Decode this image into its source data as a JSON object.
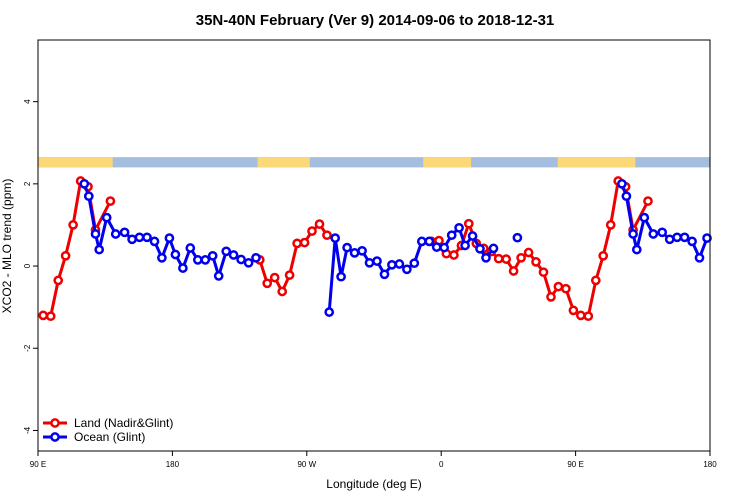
{
  "chart_data": {
    "type": "line",
    "title": "35N-40N February (Ver 9)   2014-09-06 to 2018-12-31",
    "xlabel": "Longitude (deg E)",
    "ylabel": "XCO2 - MLO trend (ppm)",
    "xlim": [
      90,
      540
    ],
    "ylim": [
      -4.5,
      5.5
    ],
    "x_ticks": [
      {
        "value": 90,
        "label": "90 E"
      },
      {
        "value": 180,
        "label": "180"
      },
      {
        "value": 270,
        "label": "90 W"
      },
      {
        "value": 360,
        "label": "0"
      },
      {
        "value": 450,
        "label": "90 E"
      },
      {
        "value": 540,
        "label": "180"
      }
    ],
    "y_ticks": [
      {
        "value": -4,
        "label": "-4"
      },
      {
        "value": -2,
        "label": "-2"
      },
      {
        "value": 0,
        "label": "0"
      },
      {
        "value": 2,
        "label": "2"
      },
      {
        "value": 4,
        "label": "4"
      }
    ],
    "land_strip": {
      "y_range": [
        2.4,
        2.65
      ],
      "ocean_color": "#A4BEE0",
      "land_color": "#FDD878",
      "land_longitudes": [
        [
          90,
          140
        ],
        [
          237,
          272
        ],
        [
          348,
          380
        ],
        [
          438,
          490
        ]
      ]
    },
    "legend": {
      "position": "bottom-left"
    },
    "series": [
      {
        "name": "Land (Nadir&Glint)",
        "color": "#EE0000",
        "points": [
          [
            93.5,
            -1.2
          ],
          [
            98.5,
            -1.22
          ],
          [
            103.5,
            -0.35
          ],
          [
            108.5,
            0.25
          ],
          [
            113.5,
            1.0
          ],
          [
            118.5,
            2.07
          ],
          [
            123.5,
            1.93
          ],
          [
            128.5,
            0.88
          ],
          [
            138.5,
            1.58
          ],
          null,
          [
            238.5,
            0.15
          ],
          [
            243.5,
            -0.42
          ],
          [
            248.5,
            -0.28
          ],
          [
            253.5,
            -0.62
          ],
          [
            258.5,
            -0.22
          ],
          [
            263.5,
            0.55
          ],
          [
            268.5,
            0.57
          ],
          [
            273.5,
            0.85
          ],
          [
            278.5,
            1.02
          ],
          [
            283.5,
            0.75
          ],
          null,
          [
            353.5,
            0.6
          ],
          [
            358.5,
            0.62
          ],
          [
            363.5,
            0.3
          ],
          [
            368.5,
            0.27
          ],
          [
            373.5,
            0.5
          ],
          [
            378.5,
            1.03
          ],
          [
            383.5,
            0.55
          ],
          [
            388.5,
            0.43
          ],
          [
            393.5,
            0.35
          ],
          [
            398.5,
            0.18
          ],
          [
            403.5,
            0.17
          ],
          [
            408.5,
            -0.12
          ],
          [
            413.5,
            0.2
          ],
          [
            418.5,
            0.33
          ],
          [
            423.5,
            0.1
          ],
          [
            428.5,
            -0.15
          ],
          [
            433.5,
            -0.75
          ],
          [
            438.5,
            -0.5
          ],
          [
            443.5,
            -0.55
          ],
          [
            448.5,
            -1.08
          ],
          [
            453.5,
            -1.2
          ],
          [
            458.5,
            -1.22
          ],
          [
            463.5,
            -0.35
          ],
          [
            468.5,
            0.25
          ],
          [
            473.5,
            1.0
          ],
          [
            478.5,
            2.07
          ],
          [
            483.5,
            1.93
          ],
          [
            488.5,
            0.88
          ],
          [
            498.5,
            1.58
          ]
        ]
      },
      {
        "name": "Ocean (Glint)",
        "color": "#0000EE",
        "points": [
          [
            121,
            2.0
          ],
          [
            124,
            1.7
          ],
          [
            128.5,
            0.78
          ],
          [
            131,
            0.4
          ],
          [
            136,
            1.18
          ],
          [
            142,
            0.78
          ],
          [
            148,
            0.82
          ],
          [
            153,
            0.65
          ],
          [
            158,
            0.7
          ],
          [
            163,
            0.7
          ],
          [
            168,
            0.6
          ],
          [
            173,
            0.2
          ],
          [
            178,
            0.68
          ],
          [
            182,
            0.28
          ],
          [
            187,
            -0.05
          ],
          [
            192,
            0.44
          ],
          [
            197,
            0.15
          ],
          [
            202,
            0.15
          ],
          [
            207,
            0.25
          ],
          [
            211,
            -0.24
          ],
          [
            216,
            0.36
          ],
          [
            221,
            0.27
          ],
          [
            226,
            0.16
          ],
          [
            231,
            0.08
          ],
          [
            236,
            0.2
          ],
          null,
          [
            285,
            -1.12
          ],
          [
            289,
            0.68
          ],
          [
            293,
            -0.26
          ],
          [
            297,
            0.45
          ],
          [
            302,
            0.32
          ],
          [
            307,
            0.37
          ],
          [
            312,
            0.08
          ],
          [
            317,
            0.12
          ],
          [
            322,
            -0.2
          ],
          [
            327,
            0.03
          ],
          [
            332,
            0.05
          ],
          [
            337,
            -0.08
          ],
          [
            342,
            0.07
          ],
          [
            347,
            0.6
          ],
          [
            352,
            0.6
          ],
          [
            357,
            0.46
          ],
          [
            362,
            0.45
          ],
          [
            367,
            0.75
          ],
          [
            372,
            0.93
          ],
          [
            376,
            0.5
          ],
          [
            381,
            0.73
          ],
          [
            386,
            0.42
          ],
          [
            390,
            0.2
          ],
          [
            395,
            0.43
          ],
          null,
          [
            411,
            0.69
          ],
          null,
          [
            481,
            2.0
          ],
          [
            484,
            1.7
          ],
          [
            488.5,
            0.78
          ],
          [
            491,
            0.4
          ],
          [
            496,
            1.18
          ],
          [
            502,
            0.78
          ],
          [
            508,
            0.82
          ],
          [
            513,
            0.65
          ],
          [
            518,
            0.7
          ],
          [
            523,
            0.7
          ],
          [
            528,
            0.6
          ],
          [
            533,
            0.2
          ],
          [
            538,
            0.68
          ]
        ]
      }
    ]
  }
}
